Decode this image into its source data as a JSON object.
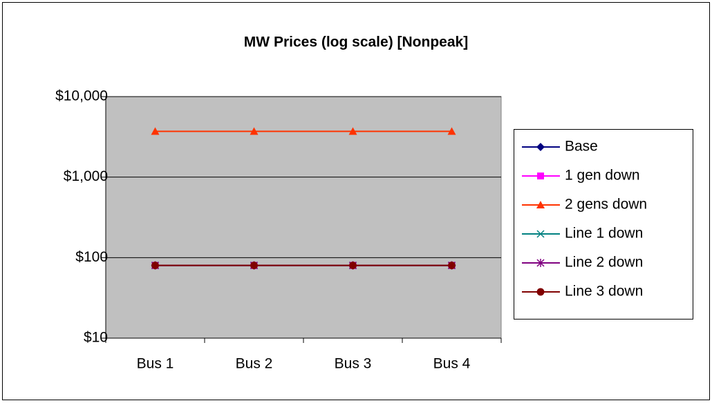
{
  "chart_data": {
    "type": "line",
    "title": "MW Prices (log scale) [Nonpeak]",
    "categories": [
      "Bus 1",
      "Bus 2",
      "Bus 3",
      "Bus 4"
    ],
    "series": [
      {
        "name": "Base",
        "color": "#000080",
        "marker": "diamond",
        "values": [
          80,
          80,
          80,
          80
        ]
      },
      {
        "name": "1 gen down",
        "color": "#ff00ff",
        "marker": "square",
        "values": [
          80,
          80,
          80,
          80
        ]
      },
      {
        "name": "2 gens down",
        "color": "#ff3300",
        "marker": "triangle",
        "values": [
          3700,
          3700,
          3700,
          3700
        ]
      },
      {
        "name": "Line 1 down",
        "color": "#008080",
        "marker": "x",
        "values": [
          80,
          80,
          80,
          80
        ]
      },
      {
        "name": "Line 2 down",
        "color": "#800080",
        "marker": "star",
        "values": [
          80,
          80,
          80,
          80
        ]
      },
      {
        "name": "Line 3 down",
        "color": "#800000",
        "marker": "circle",
        "values": [
          80,
          80,
          80,
          80
        ]
      }
    ],
    "yscale": "log",
    "ylim": [
      10,
      10000
    ],
    "yticks": [
      {
        "value": 10,
        "label": "$10"
      },
      {
        "value": 100,
        "label": "$100"
      },
      {
        "value": 1000,
        "label": "$1,000"
      },
      {
        "value": 10000,
        "label": "$10,000"
      }
    ],
    "grid": true,
    "legend": "right"
  }
}
